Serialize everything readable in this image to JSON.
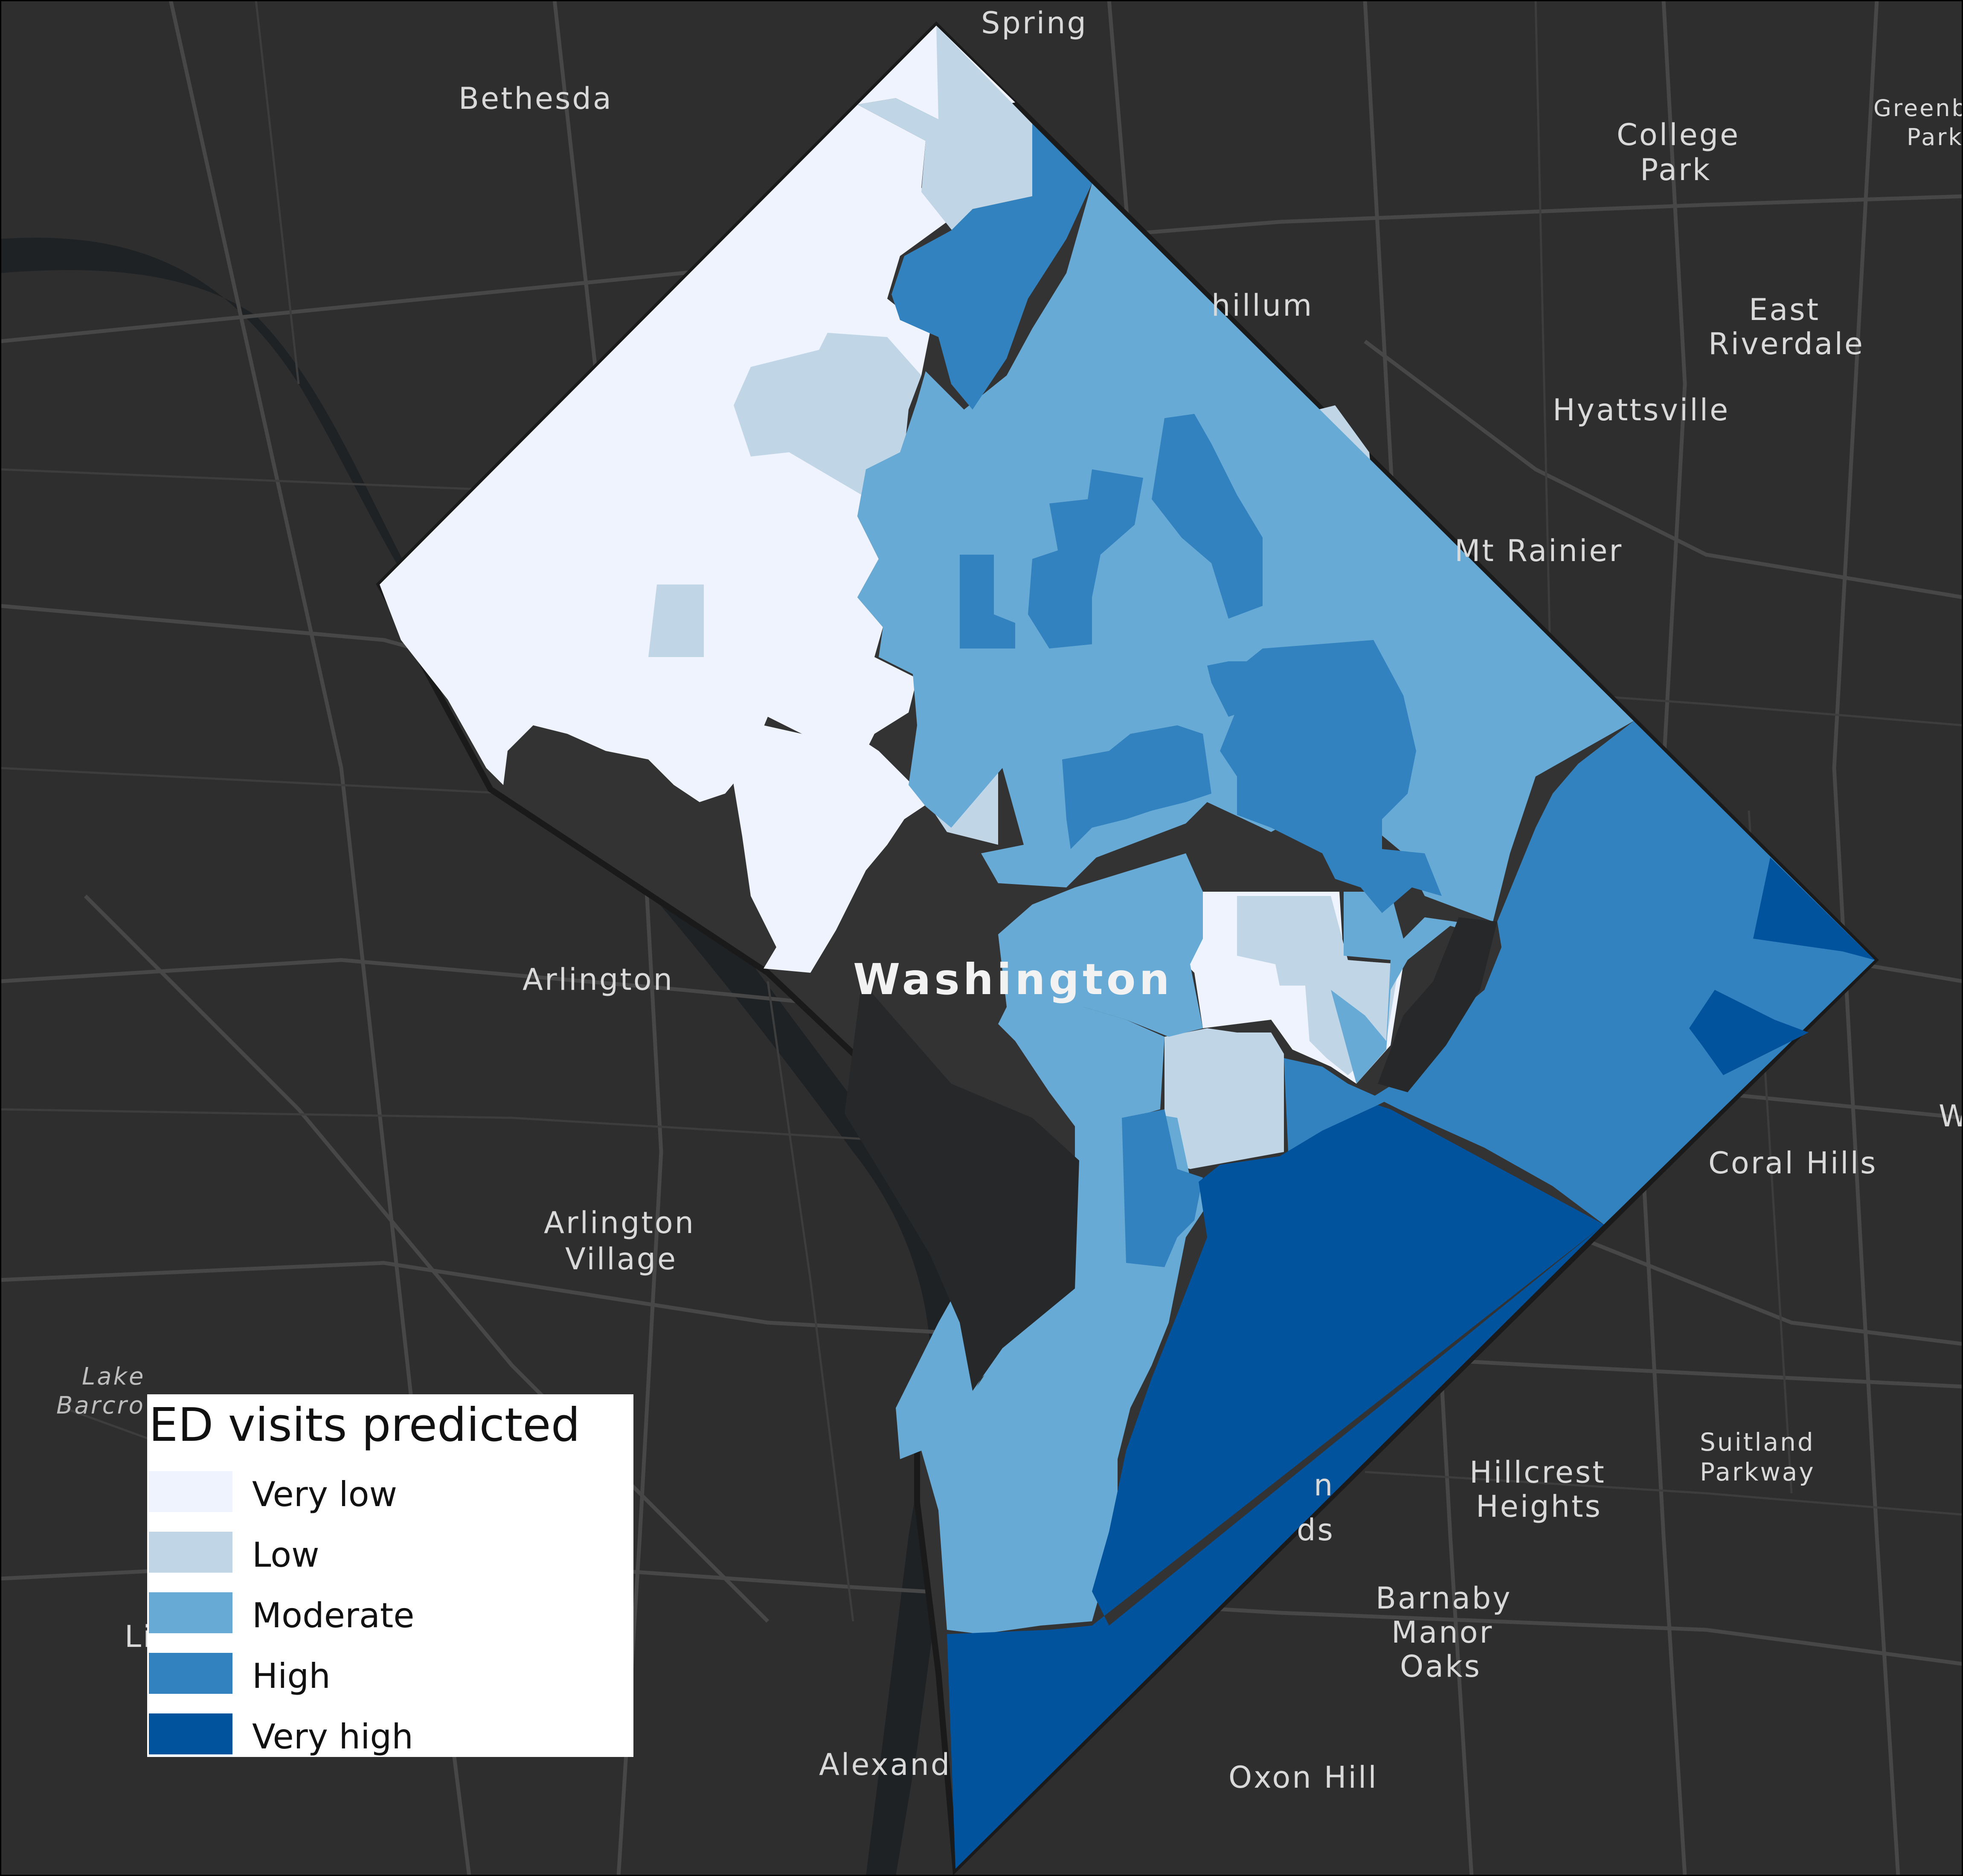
{
  "legend": {
    "title": "ED visits predicted",
    "items": [
      {
        "label": "Very low",
        "color": "#eef3fe"
      },
      {
        "label": "Low",
        "color": "#c0d6e6"
      },
      {
        "label": "Moderate",
        "color": "#68aad6"
      },
      {
        "label": "High",
        "color": "#3282bf"
      },
      {
        "label": "Very high",
        "color": "#02539e"
      }
    ]
  },
  "colors": {
    "background": "#2e2e2e",
    "roads": "#474747",
    "water": "#1f2224",
    "no_data": "#333333",
    "boundary": "#1a1a1a"
  },
  "places": {
    "spring": "Spring",
    "bethesda": "Bethesda",
    "college_park_1": "College",
    "college_park_2": "Park",
    "greenbelt_park_1": "Greenb",
    "greenbelt_park_2": "Park",
    "hillum": "hillum",
    "east_riverdale_1": "East",
    "east_riverdale_2": "Riverdale",
    "hyattsville": "Hyattsville",
    "mt_rainier": "Mt Rainier",
    "arlington": "Arlington",
    "washington": "Washington",
    "coral_hills": "Coral Hills",
    "arlington_village_1": "Arlington",
    "arlington_village_2": "Village",
    "lake_barcroft_1": "Lake",
    "lake_barcroft_2": "Barcro",
    "suitland_parkway_1": "Suitland",
    "suitland_parkway_2": "Parkway",
    "hillcrest_heights_1": "Hillcrest",
    "hillcrest_heights_2": "Heights",
    "barnaby_1": "Barnaby",
    "barnaby_2": "Manor",
    "barnaby_3": "Oaks",
    "alexandria": "Alexand",
    "oxon_hill": "Oxon Hill",
    "lincolnia_fragment": "Li",
    "heights_fragment_1": "n",
    "heights_fragment_2": "ds",
    "w_fragment": "W"
  }
}
